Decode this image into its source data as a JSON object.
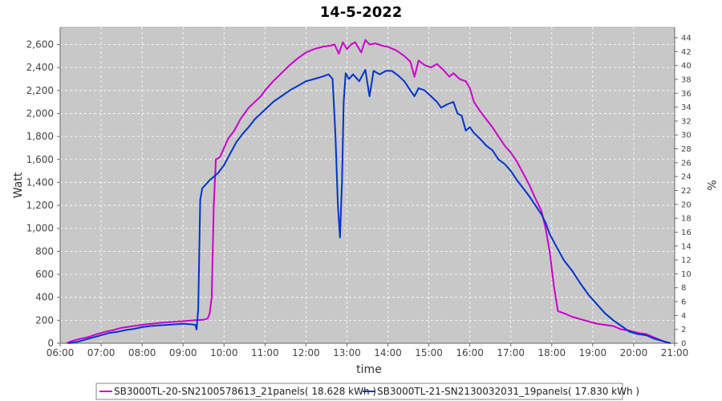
{
  "chart_data": {
    "type": "line",
    "title": "14-5-2022",
    "xlabel": "time",
    "ylabel": "Watt",
    "y2label": "%",
    "xlim": [
      6.0,
      21.0
    ],
    "ylim": [
      0,
      2750
    ],
    "y2lim": [
      0,
      45.5
    ],
    "x_ticks": [
      "06:00",
      "07:00",
      "08:00",
      "09:00",
      "10:00",
      "11:00",
      "12:00",
      "13:00",
      "14:00",
      "15:00",
      "16:00",
      "17:00",
      "18:00",
      "19:00",
      "20:00",
      "21:00"
    ],
    "y_ticks": [
      "0",
      "200",
      "400",
      "600",
      "800",
      "1,000",
      "1,200",
      "1,400",
      "1,600",
      "1,800",
      "2,000",
      "2,200",
      "2,400",
      "2,600"
    ],
    "y2_ticks": [
      "0",
      "2",
      "4",
      "6",
      "8",
      "10",
      "12",
      "14",
      "16",
      "18",
      "20",
      "22",
      "24",
      "26",
      "28",
      "30",
      "32",
      "34",
      "36",
      "38",
      "40",
      "42",
      "44"
    ],
    "grid": true,
    "legend_position": "bottom",
    "colors": {
      "plot_bg": "#c8c8c8",
      "grid": "#ffffff",
      "series1": "#cc00cc",
      "series2": "#0033cc"
    },
    "series": [
      {
        "name": "SB3000TL-20-SN2100578613_21panels( 18.628 kWh )",
        "color": "#cc00cc",
        "points": [
          [
            6.15,
            0
          ],
          [
            6.3,
            20
          ],
          [
            6.5,
            40
          ],
          [
            6.7,
            55
          ],
          [
            6.9,
            80
          ],
          [
            7.1,
            100
          ],
          [
            7.3,
            115
          ],
          [
            7.5,
            135
          ],
          [
            7.7,
            145
          ],
          [
            7.9,
            155
          ],
          [
            8.1,
            165
          ],
          [
            8.3,
            172
          ],
          [
            8.5,
            180
          ],
          [
            8.7,
            185
          ],
          [
            8.9,
            190
          ],
          [
            9.1,
            195
          ],
          [
            9.3,
            200
          ],
          [
            9.5,
            205
          ],
          [
            9.6,
            215
          ],
          [
            9.65,
            260
          ],
          [
            9.7,
            400
          ],
          [
            9.75,
            1200
          ],
          [
            9.8,
            1600
          ],
          [
            9.9,
            1620
          ],
          [
            10.0,
            1700
          ],
          [
            10.1,
            1780
          ],
          [
            10.25,
            1850
          ],
          [
            10.4,
            1950
          ],
          [
            10.5,
            2000
          ],
          [
            10.6,
            2050
          ],
          [
            10.75,
            2100
          ],
          [
            10.9,
            2150
          ],
          [
            11.0,
            2200
          ],
          [
            11.2,
            2280
          ],
          [
            11.4,
            2350
          ],
          [
            11.6,
            2420
          ],
          [
            11.8,
            2480
          ],
          [
            12.0,
            2530
          ],
          [
            12.2,
            2560
          ],
          [
            12.4,
            2580
          ],
          [
            12.6,
            2590
          ],
          [
            12.7,
            2600
          ],
          [
            12.8,
            2520
          ],
          [
            12.9,
            2620
          ],
          [
            13.0,
            2560
          ],
          [
            13.1,
            2600
          ],
          [
            13.2,
            2620
          ],
          [
            13.35,
            2530
          ],
          [
            13.45,
            2640
          ],
          [
            13.55,
            2600
          ],
          [
            13.7,
            2610
          ],
          [
            13.85,
            2590
          ],
          [
            14.0,
            2580
          ],
          [
            14.2,
            2550
          ],
          [
            14.4,
            2500
          ],
          [
            14.55,
            2450
          ],
          [
            14.65,
            2320
          ],
          [
            14.75,
            2460
          ],
          [
            14.9,
            2420
          ],
          [
            15.05,
            2400
          ],
          [
            15.2,
            2430
          ],
          [
            15.35,
            2380
          ],
          [
            15.5,
            2320
          ],
          [
            15.6,
            2350
          ],
          [
            15.75,
            2300
          ],
          [
            15.9,
            2280
          ],
          [
            16.0,
            2220
          ],
          [
            16.1,
            2100
          ],
          [
            16.25,
            2020
          ],
          [
            16.4,
            1950
          ],
          [
            16.55,
            1880
          ],
          [
            16.7,
            1800
          ],
          [
            16.85,
            1720
          ],
          [
            17.0,
            1660
          ],
          [
            17.15,
            1580
          ],
          [
            17.3,
            1480
          ],
          [
            17.45,
            1380
          ],
          [
            17.6,
            1260
          ],
          [
            17.75,
            1150
          ],
          [
            17.85,
            1000
          ],
          [
            17.95,
            800
          ],
          [
            18.05,
            500
          ],
          [
            18.15,
            280
          ],
          [
            18.3,
            260
          ],
          [
            18.5,
            230
          ],
          [
            18.7,
            210
          ],
          [
            18.9,
            190
          ],
          [
            19.1,
            170
          ],
          [
            19.3,
            160
          ],
          [
            19.5,
            150
          ],
          [
            19.7,
            120
          ],
          [
            19.9,
            110
          ],
          [
            20.1,
            90
          ],
          [
            20.3,
            80
          ],
          [
            20.5,
            50
          ],
          [
            20.7,
            20
          ],
          [
            20.85,
            0
          ]
        ]
      },
      {
        "name": "SB3000TL-21-SN2130032031_19panels( 17.830 kWh )",
        "color": "#0033cc",
        "points": [
          [
            6.2,
            0
          ],
          [
            6.4,
            10
          ],
          [
            6.6,
            30
          ],
          [
            6.8,
            50
          ],
          [
            7.0,
            70
          ],
          [
            7.2,
            90
          ],
          [
            7.4,
            100
          ],
          [
            7.6,
            115
          ],
          [
            7.8,
            125
          ],
          [
            8.0,
            140
          ],
          [
            8.2,
            150
          ],
          [
            8.4,
            155
          ],
          [
            8.6,
            160
          ],
          [
            8.8,
            165
          ],
          [
            9.0,
            170
          ],
          [
            9.2,
            165
          ],
          [
            9.3,
            160
          ],
          [
            9.33,
            120
          ],
          [
            9.37,
            300
          ],
          [
            9.42,
            1250
          ],
          [
            9.47,
            1350
          ],
          [
            9.55,
            1380
          ],
          [
            9.65,
            1420
          ],
          [
            9.75,
            1450
          ],
          [
            9.85,
            1480
          ],
          [
            10.0,
            1550
          ],
          [
            10.15,
            1650
          ],
          [
            10.3,
            1750
          ],
          [
            10.45,
            1820
          ],
          [
            10.6,
            1880
          ],
          [
            10.75,
            1950
          ],
          [
            10.9,
            2000
          ],
          [
            11.05,
            2050
          ],
          [
            11.2,
            2100
          ],
          [
            11.4,
            2150
          ],
          [
            11.6,
            2200
          ],
          [
            11.8,
            2240
          ],
          [
            12.0,
            2280
          ],
          [
            12.2,
            2300
          ],
          [
            12.4,
            2320
          ],
          [
            12.55,
            2340
          ],
          [
            12.65,
            2300
          ],
          [
            12.72,
            1800
          ],
          [
            12.78,
            1200
          ],
          [
            12.83,
            920
          ],
          [
            12.88,
            1400
          ],
          [
            12.92,
            2100
          ],
          [
            12.97,
            2350
          ],
          [
            13.05,
            2300
          ],
          [
            13.15,
            2340
          ],
          [
            13.3,
            2280
          ],
          [
            13.45,
            2380
          ],
          [
            13.55,
            2150
          ],
          [
            13.65,
            2370
          ],
          [
            13.8,
            2340
          ],
          [
            13.95,
            2370
          ],
          [
            14.1,
            2370
          ],
          [
            14.25,
            2330
          ],
          [
            14.4,
            2280
          ],
          [
            14.55,
            2200
          ],
          [
            14.65,
            2150
          ],
          [
            14.75,
            2220
          ],
          [
            14.9,
            2200
          ],
          [
            15.05,
            2150
          ],
          [
            15.2,
            2100
          ],
          [
            15.3,
            2050
          ],
          [
            15.45,
            2080
          ],
          [
            15.6,
            2100
          ],
          [
            15.7,
            2000
          ],
          [
            15.8,
            1980
          ],
          [
            15.9,
            1850
          ],
          [
            16.0,
            1880
          ],
          [
            16.1,
            1830
          ],
          [
            16.25,
            1780
          ],
          [
            16.4,
            1720
          ],
          [
            16.55,
            1680
          ],
          [
            16.7,
            1600
          ],
          [
            16.85,
            1560
          ],
          [
            17.0,
            1500
          ],
          [
            17.15,
            1420
          ],
          [
            17.3,
            1350
          ],
          [
            17.45,
            1280
          ],
          [
            17.6,
            1200
          ],
          [
            17.75,
            1120
          ],
          [
            17.85,
            1050
          ],
          [
            17.95,
            950
          ],
          [
            18.1,
            850
          ],
          [
            18.3,
            720
          ],
          [
            18.5,
            630
          ],
          [
            18.7,
            520
          ],
          [
            18.9,
            420
          ],
          [
            19.1,
            340
          ],
          [
            19.3,
            260
          ],
          [
            19.5,
            200
          ],
          [
            19.7,
            150
          ],
          [
            19.9,
            100
          ],
          [
            20.1,
            80
          ],
          [
            20.3,
            70
          ],
          [
            20.5,
            40
          ],
          [
            20.7,
            20
          ],
          [
            20.9,
            0
          ]
        ]
      }
    ]
  }
}
